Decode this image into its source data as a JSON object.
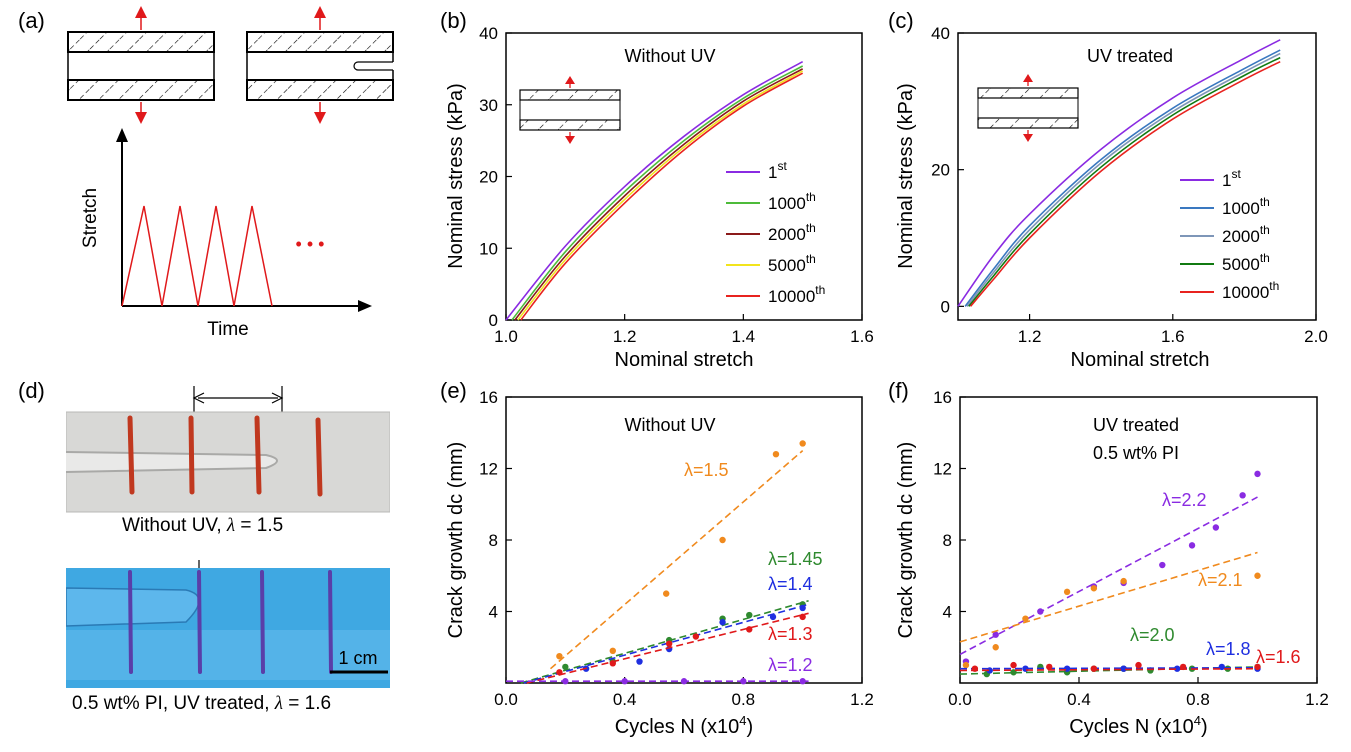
{
  "panel_labels": {
    "a": "(a)",
    "b": "(b)",
    "c": "(c)",
    "d": "(d)",
    "e": "(e)",
    "f": "(f)"
  },
  "schematic": {
    "ylabel": "Stretch",
    "xlabel": "Time",
    "ellipsis": "• • •"
  },
  "photos": {
    "top_caption_prefix": "Without UV, ",
    "top_caption_lambda": "λ",
    "top_caption_value": " = 1.5",
    "bottom_caption_prefix": "0.5 wt% PI, UV treated, ",
    "bottom_caption_lambda": "λ",
    "bottom_caption_value": " = 1.6",
    "scalebar": "1 cm"
  },
  "colors": {
    "red": "#e0191b",
    "orange": "#f08a1e",
    "green": "#2f8a2f",
    "blue": "#1f2fe0",
    "purple": "#8a2be2",
    "violet_line": "#8a2be2",
    "green_line": "#4dbb3a",
    "maroon_line": "#8b1a1a",
    "yellow_line": "#f2e41c",
    "red_line": "#e8231f",
    "steel1": "#3a78c0",
    "steel2": "#7e96b8",
    "dkgreen": "#117a11"
  },
  "chart_data": [
    {
      "id": "b",
      "type": "line",
      "title": "Without UV",
      "xlabel": "Nominal stretch",
      "ylabel": "Nominal stress (kPa)",
      "xlim": [
        1.0,
        1.6
      ],
      "ylim": [
        0,
        40
      ],
      "xticks": [
        "1.0",
        "1.2",
        "1.4",
        "1.6"
      ],
      "yticks": [
        "0",
        "10",
        "20",
        "30",
        "40"
      ],
      "legend_position": "right",
      "series": [
        {
          "name": "1",
          "sup": "st",
          "x": [
            1.0,
            1.1,
            1.2,
            1.3,
            1.4,
            1.5
          ],
          "y": [
            0,
            10.3,
            18.6,
            25.6,
            31.4,
            36.0
          ]
        },
        {
          "name": "1000",
          "sup": "th",
          "x": [
            1.01,
            1.1,
            1.2,
            1.3,
            1.4,
            1.5
          ],
          "y": [
            0,
            9.5,
            17.9,
            25.0,
            30.9,
            35.4
          ]
        },
        {
          "name": "2000",
          "sup": "th",
          "x": [
            1.015,
            1.1,
            1.2,
            1.3,
            1.4,
            1.5
          ],
          "y": [
            0,
            8.9,
            17.3,
            24.5,
            30.5,
            35.0
          ]
        },
        {
          "name": "5000",
          "sup": "th",
          "x": [
            1.02,
            1.1,
            1.2,
            1.3,
            1.4,
            1.5
          ],
          "y": [
            0,
            8.4,
            16.8,
            24.1,
            30.1,
            34.7
          ]
        },
        {
          "name": "10000",
          "sup": "th",
          "x": [
            1.025,
            1.1,
            1.2,
            1.3,
            1.4,
            1.5
          ],
          "y": [
            0,
            7.9,
            16.3,
            23.7,
            29.8,
            34.4
          ]
        }
      ]
    },
    {
      "id": "c",
      "type": "line",
      "title": "UV treated",
      "xlabel": "Nominal stretch",
      "ylabel": "Nominal stress (kPa)",
      "xlim": [
        1.0,
        2.0
      ],
      "ylim": [
        -2,
        40
      ],
      "xticks": [
        "1.2",
        "1.6",
        "2.0"
      ],
      "yticks": [
        "0",
        "20",
        "40"
      ],
      "legend_position": "right",
      "series": [
        {
          "name": "1",
          "sup": "st",
          "x": [
            1.0,
            1.1,
            1.2,
            1.4,
            1.6,
            1.8,
            1.9
          ],
          "y": [
            0,
            7.5,
            13.5,
            23.0,
            30.5,
            36.3,
            39.0
          ]
        },
        {
          "name": "1000",
          "sup": "th",
          "x": [
            1.02,
            1.1,
            1.2,
            1.4,
            1.6,
            1.8,
            1.9
          ],
          "y": [
            0,
            5.5,
            11.8,
            21.5,
            29.0,
            34.8,
            37.5
          ]
        },
        {
          "name": "2000",
          "sup": "th",
          "x": [
            1.025,
            1.1,
            1.2,
            1.4,
            1.6,
            1.8,
            1.9
          ],
          "y": [
            0,
            5.0,
            11.2,
            21.0,
            28.5,
            34.3,
            37.0
          ]
        },
        {
          "name": "5000",
          "sup": "th",
          "x": [
            1.03,
            1.1,
            1.2,
            1.4,
            1.6,
            1.8,
            1.9
          ],
          "y": [
            0,
            4.5,
            10.6,
            20.4,
            28.0,
            33.8,
            36.4
          ]
        },
        {
          "name": "10000",
          "sup": "th",
          "x": [
            1.035,
            1.1,
            1.2,
            1.4,
            1.6,
            1.8,
            1.9
          ],
          "y": [
            0,
            4.0,
            10.0,
            19.8,
            27.4,
            33.2,
            35.8
          ]
        }
      ]
    },
    {
      "id": "e",
      "type": "scatter",
      "title": "Without UV",
      "xlabel": "Cycles N (x10",
      "xlabel_sup": "4",
      "xlabel_end": ")",
      "ylabel": "Crack growth dc (mm)",
      "xlim": [
        0,
        1.2
      ],
      "ylim": [
        0,
        16
      ],
      "xticks": [
        "0.0",
        "0.4",
        "0.8",
        "1.2"
      ],
      "yticks": [
        "4",
        "8",
        "12",
        "16"
      ],
      "series": [
        {
          "name": "λ=1.5",
          "points": [
            [
              0.18,
              1.5
            ],
            [
              0.36,
              1.8
            ],
            [
              0.54,
              5.0
            ],
            [
              0.73,
              8.0
            ],
            [
              0.91,
              12.8
            ],
            [
              1.0,
              13.4
            ]
          ],
          "fit": [
            [
              0.15,
              0.8
            ],
            [
              1.0,
              13.0
            ]
          ]
        },
        {
          "name": "λ=1.45",
          "points": [
            [
              0.2,
              0.9
            ],
            [
              0.36,
              1.2
            ],
            [
              0.55,
              2.4
            ],
            [
              0.73,
              3.6
            ],
            [
              0.82,
              3.8
            ],
            [
              1.0,
              4.4
            ]
          ],
          "fit": [
            [
              0.05,
              0
            ],
            [
              1.02,
              4.6
            ]
          ]
        },
        {
          "name": "λ=1.4",
          "points": [
            [
              0.27,
              0.8
            ],
            [
              0.45,
              1.2
            ],
            [
              0.55,
              1.9
            ],
            [
              0.73,
              3.4
            ],
            [
              0.9,
              3.7
            ],
            [
              1.0,
              4.2
            ]
          ],
          "fit": [
            [
              0.06,
              0
            ],
            [
              1.02,
              4.4
            ]
          ]
        },
        {
          "name": "λ=1.3",
          "points": [
            [
              0.18,
              0.6
            ],
            [
              0.36,
              1.1
            ],
            [
              0.55,
              2.2
            ],
            [
              0.64,
              2.6
            ],
            [
              0.82,
              3.0
            ],
            [
              1.0,
              3.7
            ]
          ],
          "fit": [
            [
              0.07,
              0
            ],
            [
              1.02,
              3.9
            ]
          ]
        },
        {
          "name": "λ=1.2",
          "points": [
            [
              0.2,
              0.1
            ],
            [
              0.4,
              0.1
            ],
            [
              0.6,
              0.1
            ],
            [
              0.8,
              0.1
            ],
            [
              1.0,
              0.1
            ]
          ],
          "fit": [
            [
              0.0,
              0.1
            ],
            [
              1.02,
              0.1
            ]
          ]
        }
      ]
    },
    {
      "id": "f",
      "type": "scatter",
      "title": "UV treated",
      "subtitle": "0.5 wt% PI",
      "xlabel": "Cycles N (x10",
      "xlabel_sup": "4",
      "xlabel_end": ")",
      "ylabel": "Crack growth dc (mm)",
      "xlim": [
        0,
        1.2
      ],
      "ylim": [
        0,
        16
      ],
      "xticks": [
        "0.0",
        "0.4",
        "0.8",
        "1.2"
      ],
      "yticks": [
        "4",
        "8",
        "12",
        "16"
      ],
      "series": [
        {
          "name": "λ=2.2",
          "points": [
            [
              0.02,
              1.2
            ],
            [
              0.12,
              2.7
            ],
            [
              0.27,
              4.0
            ],
            [
              0.45,
              5.4
            ],
            [
              0.55,
              5.6
            ],
            [
              0.68,
              6.6
            ],
            [
              0.78,
              7.7
            ],
            [
              0.86,
              8.7
            ],
            [
              0.95,
              10.5
            ],
            [
              1.0,
              11.7
            ]
          ],
          "fit": [
            [
              0.0,
              1.6
            ],
            [
              1.0,
              10.4
            ]
          ]
        },
        {
          "name": "λ=2.1",
          "points": [
            [
              0.02,
              1.0
            ],
            [
              0.12,
              2.0
            ],
            [
              0.22,
              3.6
            ],
            [
              0.36,
              5.1
            ],
            [
              0.45,
              5.3
            ],
            [
              0.55,
              5.7
            ],
            [
              1.0,
              6.0
            ]
          ],
          "fit": [
            [
              0.0,
              2.3
            ],
            [
              1.0,
              7.3
            ]
          ]
        },
        {
          "name": "λ=2.0",
          "points": [
            [
              0.09,
              0.5
            ],
            [
              0.18,
              0.6
            ],
            [
              0.27,
              0.9
            ],
            [
              0.36,
              0.6
            ],
            [
              0.45,
              0.8
            ],
            [
              0.55,
              0.8
            ],
            [
              0.64,
              0.7
            ],
            [
              0.78,
              0.8
            ],
            [
              0.9,
              0.8
            ],
            [
              1.0,
              0.9
            ]
          ],
          "fit": [
            [
              0.0,
              0.5
            ],
            [
              1.0,
              0.9
            ]
          ]
        },
        {
          "name": "λ=1.8",
          "points": [
            [
              0.1,
              0.7
            ],
            [
              0.22,
              0.8
            ],
            [
              0.36,
              0.8
            ],
            [
              0.55,
              0.8
            ],
            [
              0.73,
              0.8
            ],
            [
              0.88,
              0.9
            ],
            [
              1.0,
              0.8
            ]
          ],
          "fit": [
            [
              0.0,
              0.8
            ],
            [
              1.0,
              0.85
            ]
          ]
        },
        {
          "name": "λ=1.6",
          "points": [
            [
              0.05,
              0.8
            ],
            [
              0.18,
              1.0
            ],
            [
              0.3,
              0.9
            ],
            [
              0.45,
              0.8
            ],
            [
              0.6,
              1.0
            ],
            [
              0.75,
              0.9
            ],
            [
              1.0,
              0.9
            ]
          ],
          "fit": [
            [
              0.0,
              0.7
            ],
            [
              1.0,
              0.8
            ]
          ]
        }
      ]
    }
  ]
}
